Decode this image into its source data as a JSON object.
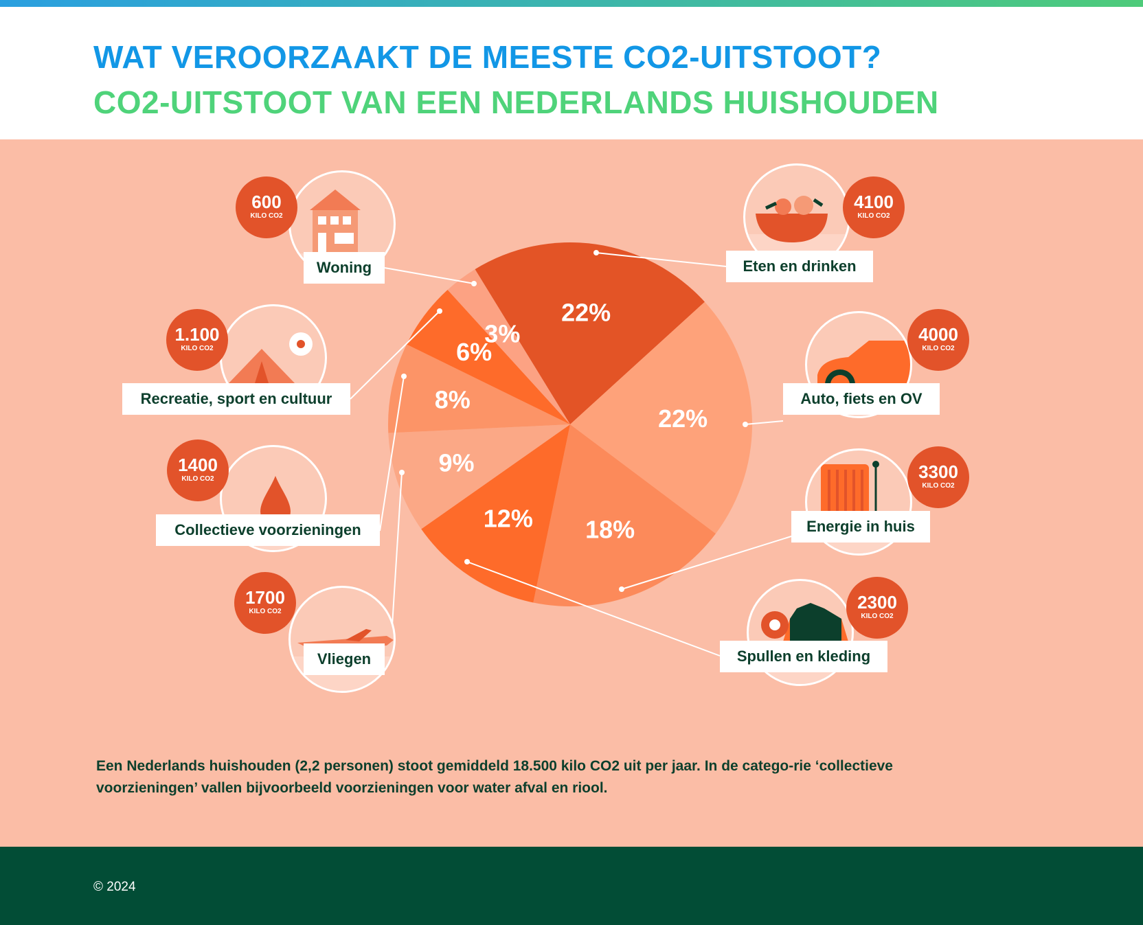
{
  "header": {
    "title": "WAT VEROORZAAKT DE MEESTE CO2-UITSTOOT?",
    "subtitle": "CO2-UITSTOOT VAN EEN NEDERLANDS HUISHOUDEN"
  },
  "chart_data": {
    "type": "pie",
    "title": "WAT VEROORZAAKT DE MEESTE CO2-UITSTOOT?",
    "subtitle": "CO2-UITSTOOT VAN EEN NEDERLANDS HUISHOUDEN",
    "slices": [
      {
        "label": "Eten en drinken",
        "percent": 22,
        "value_label": "22%",
        "kg": "4100",
        "unit": "KILO CO2",
        "color": "#e35426"
      },
      {
        "label": "Auto, fiets en OV",
        "percent": 22,
        "value_label": "22%",
        "kg": "4000",
        "unit": "KILO CO2",
        "color": "#fea27a"
      },
      {
        "label": "Energie in huis",
        "percent": 18,
        "value_label": "18%",
        "kg": "3300",
        "unit": "KILO CO2",
        "color": "#fc8a5a"
      },
      {
        "label": "Spullen en kleding",
        "percent": 12,
        "value_label": "12%",
        "kg": "2300",
        "unit": "KILO CO2",
        "color": "#fe6b2a"
      },
      {
        "label": "Vliegen",
        "percent": 9,
        "value_label": "9%",
        "kg": "1700",
        "unit": "KILO CO2",
        "color": "#fba886"
      },
      {
        "label": "Collectieve voorzieningen",
        "percent": 8,
        "value_label": "8%",
        "kg": "1400",
        "unit": "KILO CO2",
        "color": "#fc9467"
      },
      {
        "label": "Recreatie, sport en cultuur",
        "percent": 6,
        "value_label": "6%",
        "kg": "1.100",
        "unit": "KILO CO2",
        "color": "#fe6b2a"
      },
      {
        "label": "Woning",
        "percent": 3,
        "value_label": "3%",
        "kg": "600",
        "unit": "KILO CO2",
        "color": "#fca283"
      }
    ]
  },
  "note": "Een Nederlands huishouden (2,2 personen) stoot gemiddeld 18.500 kilo CO2 uit per jaar. In de catego-rie ‘collectieve voorzieningen’ vallen bijvoorbeeld voorzieningen voor water afval en riool.",
  "footer": {
    "copyright": "© 2024"
  },
  "colors": {
    "title": "#1297e6",
    "subtitle": "#4fd37a",
    "background": "#fbbda6",
    "footer": "#024d36",
    "badge": "#e2532a",
    "label_text": "#0c3f2c"
  },
  "icons": [
    "house-icon",
    "tent-icon",
    "football-icon",
    "drop-icon",
    "airplane-icon",
    "salad-bowl-icon",
    "car-icon",
    "radiator-icon",
    "jacket-icon",
    "hairdryer-icon"
  ]
}
